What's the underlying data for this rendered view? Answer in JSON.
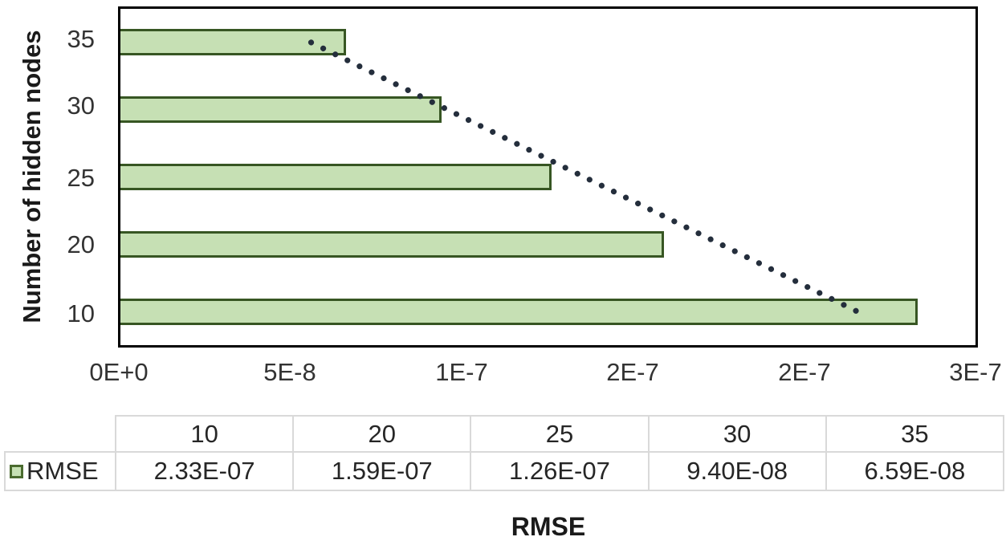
{
  "chart_data": {
    "type": "bar",
    "orientation": "horizontal",
    "title": "",
    "xlabel": "RMSE",
    "ylabel": "Number of hidden nodes",
    "series_name": "RMSE",
    "x_axis": {
      "min": 0,
      "max": 2.5e-07,
      "tick_labels": [
        "0E+0",
        "5E-8",
        "1E-7",
        "2E-7",
        "2E-7",
        "3E-7"
      ],
      "tick_values": [
        0,
        5e-08,
        1e-07,
        1.5e-07,
        2e-07,
        2.5e-07
      ]
    },
    "rows": [
      {
        "label": "35",
        "value": 6.59e-08
      },
      {
        "label": "30",
        "value": 9.4e-08
      },
      {
        "label": "25",
        "value": 1.26e-07
      },
      {
        "label": "20",
        "value": 1.59e-07
      },
      {
        "label": "10",
        "value": 2.33e-07
      }
    ],
    "trendline": {
      "style": "dotted",
      "fit": "linear",
      "color": "#242e3c"
    },
    "legend_position": "table-left",
    "grid": false,
    "colors": {
      "bar_fill": "#c6e0b4",
      "bar_border": "#375623",
      "plot_border": "#000000",
      "table_border": "#d9d9d9"
    }
  },
  "table": {
    "columns": [
      "10",
      "20",
      "25",
      "30",
      "35"
    ],
    "row_label": "RMSE",
    "values": [
      "2.33E-07",
      "1.59E-07",
      "1.26E-07",
      "9.40E-08",
      "6.59E-08"
    ]
  }
}
